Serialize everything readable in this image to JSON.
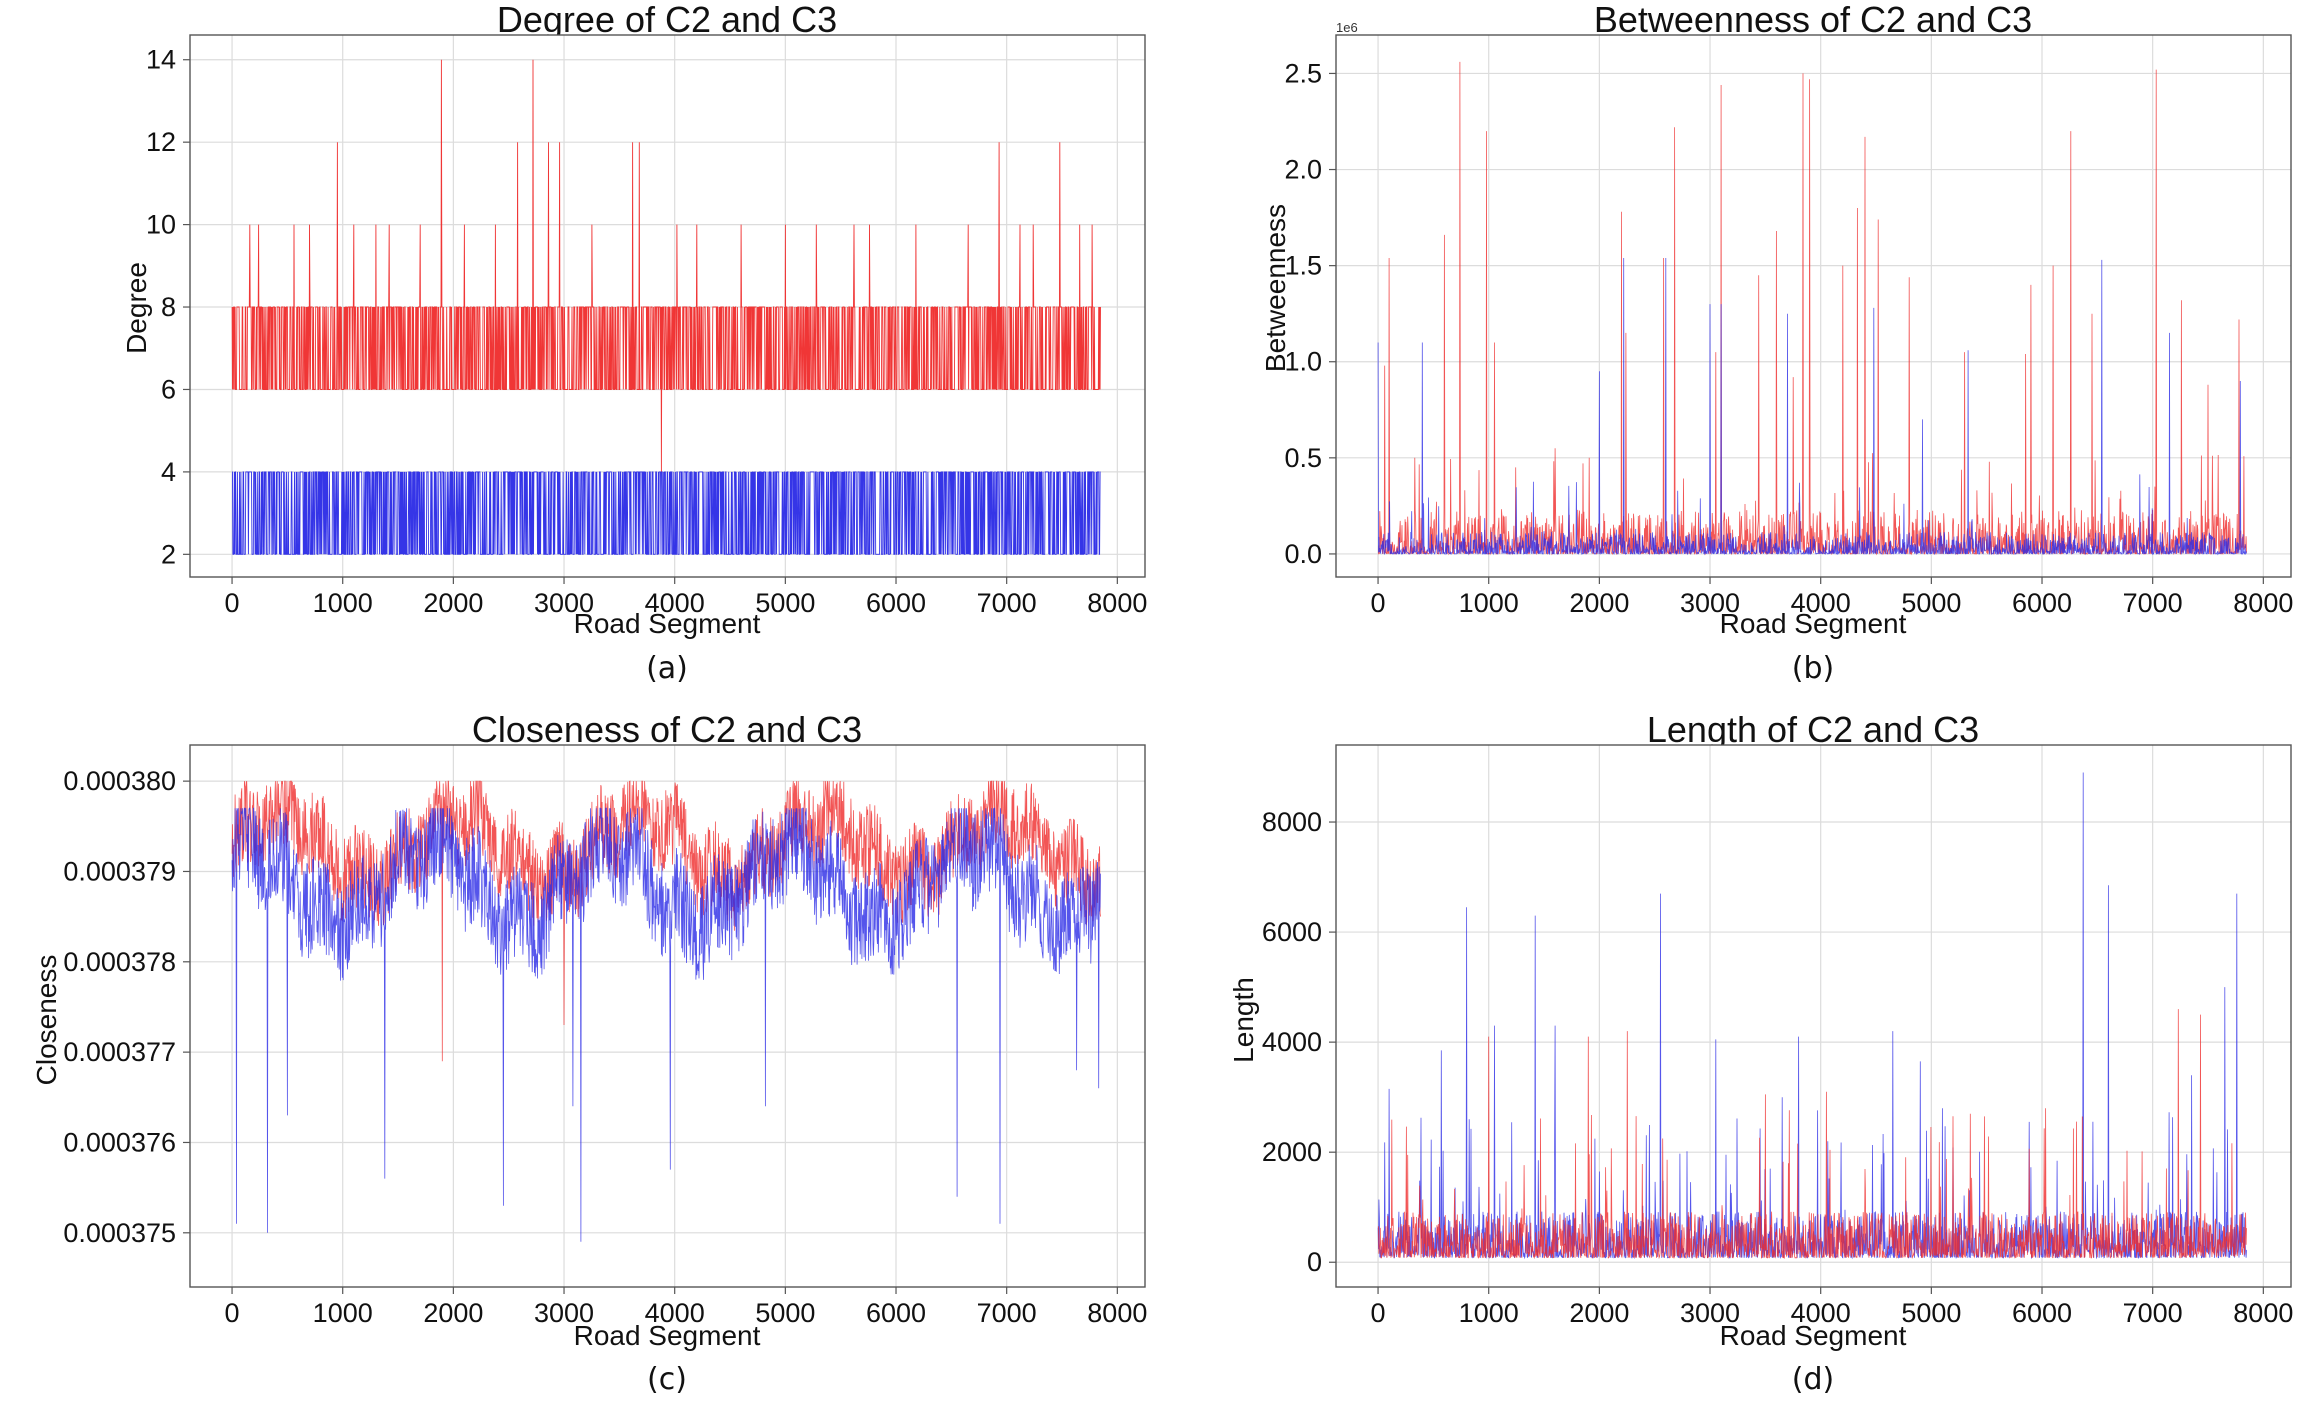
{
  "figure": {
    "captions": [
      "(a)",
      "(b)",
      "(c)",
      "(d)"
    ]
  },
  "chart_data": [
    {
      "id": "a",
      "type": "line",
      "title": "Degree of C2 and C3",
      "xlabel": "Road Segment",
      "ylabel": "Degree",
      "xlim": [
        -380,
        8250
      ],
      "ylim": [
        1.45,
        14.6
      ],
      "xticks": [
        0,
        1000,
        2000,
        3000,
        4000,
        5000,
        6000,
        7000,
        8000
      ],
      "yticks": [
        2,
        4,
        6,
        8,
        10,
        12,
        14
      ],
      "ytick_labels": [
        "2",
        "4",
        "6",
        "8",
        "10",
        "12",
        "14"
      ],
      "grid": true,
      "n_segments": 7850,
      "series": [
        {
          "color": "#ef2b2b",
          "baseline": 6,
          "typical_max": 8,
          "peaks": [
            [
              160,
              10
            ],
            [
              240,
              10
            ],
            [
              560,
              10
            ],
            [
              700,
              10
            ],
            [
              950,
              12
            ],
            [
              1100,
              10
            ],
            [
              1300,
              10
            ],
            [
              1420,
              10
            ],
            [
              1700,
              10
            ],
            [
              1890,
              14
            ],
            [
              2100,
              10
            ],
            [
              2380,
              10
            ],
            [
              2580,
              12
            ],
            [
              2720,
              14
            ],
            [
              2860,
              12
            ],
            [
              2960,
              12
            ],
            [
              3250,
              10
            ],
            [
              3620,
              12
            ],
            [
              3680,
              12
            ],
            [
              3880,
              4
            ],
            [
              4020,
              10
            ],
            [
              4200,
              10
            ],
            [
              4600,
              10
            ],
            [
              5000,
              10
            ],
            [
              5280,
              10
            ],
            [
              5620,
              10
            ],
            [
              5760,
              10
            ],
            [
              6180,
              10
            ],
            [
              6650,
              10
            ],
            [
              6930,
              12
            ],
            [
              7120,
              10
            ],
            [
              7240,
              10
            ],
            [
              7480,
              12
            ],
            [
              7660,
              10
            ],
            [
              7770,
              10
            ]
          ]
        },
        {
          "color": "#2a2ae6",
          "baseline": 2,
          "typical_max": 4,
          "peaks": []
        }
      ]
    },
    {
      "id": "b",
      "type": "line",
      "title": "Betweenness of C2 and C3",
      "xlabel": "Road Segment",
      "ylabel": "Betweenness",
      "xlim": [
        -380,
        8250
      ],
      "ylim": [
        -120000,
        2700000
      ],
      "xticks": [
        0,
        1000,
        2000,
        3000,
        4000,
        5000,
        6000,
        7000,
        8000
      ],
      "yticks": [
        0,
        500000,
        1000000,
        1500000,
        2000000,
        2500000
      ],
      "ytick_labels": [
        "0.0",
        "0.5",
        "1.0",
        "1.5",
        "2.0",
        "2.5"
      ],
      "offset_text": "1e6",
      "grid": true,
      "n_segments": 7850,
      "series": [
        {
          "color": "#ef2b2b",
          "baseline": 0,
          "peaks": [
            [
              60,
              980000
            ],
            [
              100,
              1540000
            ],
            [
              330,
              500000
            ],
            [
              600,
              1660000
            ],
            [
              740,
              2560000
            ],
            [
              980,
              2200000
            ],
            [
              1050,
              1100000
            ],
            [
              1600,
              550000
            ],
            [
              2200,
              1780000
            ],
            [
              2240,
              1150000
            ],
            [
              2580,
              1540000
            ],
            [
              2680,
              2220000
            ],
            [
              3050,
              1050000
            ],
            [
              3100,
              2440000
            ],
            [
              3440,
              1450000
            ],
            [
              3600,
              1680000
            ],
            [
              3750,
              920000
            ],
            [
              3840,
              2500000
            ],
            [
              3900,
              2470000
            ],
            [
              4200,
              1500000
            ],
            [
              4330,
              1800000
            ],
            [
              4400,
              2170000
            ],
            [
              4520,
              1740000
            ],
            [
              4800,
              1440000
            ],
            [
              5300,
              1050000
            ],
            [
              5850,
              1040000
            ],
            [
              5900,
              1400000
            ],
            [
              6100,
              1500000
            ],
            [
              6260,
              2200000
            ],
            [
              6450,
              1250000
            ],
            [
              7030,
              2520000
            ],
            [
              7260,
              1320000
            ],
            [
              7500,
              880000
            ],
            [
              7780,
              1220000
            ]
          ]
        },
        {
          "color": "#2a2ae6",
          "baseline": 0,
          "peaks": [
            [
              0,
              1100000
            ],
            [
              400,
              1100000
            ],
            [
              2000,
              950000
            ],
            [
              2220,
              1540000
            ],
            [
              2600,
              1540000
            ],
            [
              3000,
              1300000
            ],
            [
              3100,
              1300000
            ],
            [
              3700,
              1250000
            ],
            [
              4480,
              1280000
            ],
            [
              4920,
              700000
            ],
            [
              5330,
              1060000
            ],
            [
              6540,
              1530000
            ],
            [
              7150,
              1150000
            ],
            [
              7790,
              900000
            ]
          ]
        }
      ]
    },
    {
      "id": "c",
      "type": "line",
      "title": "Closeness of C2 and C3",
      "xlabel": "Road Segment",
      "ylabel": "Closeness",
      "xlim": [
        -380,
        8250
      ],
      "ylim": [
        0.0003744,
        0.0003804
      ],
      "xticks": [
        0,
        1000,
        2000,
        3000,
        4000,
        5000,
        6000,
        7000,
        8000
      ],
      "yticks": [
        0.000375,
        0.000376,
        0.000377,
        0.000378,
        0.000379,
        0.00038
      ],
      "ytick_labels": [
        "0.000375",
        "0.000376",
        "0.000377",
        "0.000378",
        "0.000379",
        "0.000380"
      ],
      "grid": true,
      "n_segments": 7850,
      "series": [
        {
          "color": "#ef2b2b",
          "band": [
            0.0003783,
            0.00038
          ],
          "dips": [
            [
              1900,
              0.0003769
            ],
            [
              3000,
              0.0003773
            ]
          ]
        },
        {
          "color": "#2a2ae6",
          "band": [
            0.0003777,
            0.0003797
          ],
          "dips": [
            [
              40,
              0.0003751
            ],
            [
              320,
              0.000375
            ],
            [
              500,
              0.0003763
            ],
            [
              1380,
              0.0003756
            ],
            [
              2450,
              0.0003753
            ],
            [
              3080,
              0.0003764
            ],
            [
              3150,
              0.0003749
            ],
            [
              3960,
              0.0003757
            ],
            [
              4820,
              0.0003764
            ],
            [
              6550,
              0.0003754
            ],
            [
              6940,
              0.0003751
            ],
            [
              7630,
              0.0003768
            ],
            [
              7830,
              0.0003766
            ]
          ]
        }
      ]
    },
    {
      "id": "d",
      "type": "line",
      "title": "Length of C2 and C3",
      "xlabel": "Road Segment",
      "ylabel": "Length",
      "xlim": [
        -380,
        8250
      ],
      "ylim": [
        -450,
        9400
      ],
      "xticks": [
        0,
        1000,
        2000,
        3000,
        4000,
        5000,
        6000,
        7000,
        8000
      ],
      "yticks": [
        0,
        2000,
        4000,
        6000,
        8000
      ],
      "ytick_labels": [
        "0",
        "2000",
        "4000",
        "6000",
        "8000"
      ],
      "grid": true,
      "n_segments": 7850,
      "series": [
        {
          "color": "#2a2ae6",
          "baseline": 0,
          "peaks": [
            [
              100,
              3150
            ],
            [
              570,
              3850
            ],
            [
              800,
              6450
            ],
            [
              1050,
              4300
            ],
            [
              1420,
              6300
            ],
            [
              1600,
              4300
            ],
            [
              2550,
              6700
            ],
            [
              3050,
              4050
            ],
            [
              3650,
              3000
            ],
            [
              3800,
              4100
            ],
            [
              4650,
              4200
            ],
            [
              4900,
              3650
            ],
            [
              5100,
              2800
            ],
            [
              6370,
              8900
            ],
            [
              6600,
              6850
            ],
            [
              7350,
              3400
            ],
            [
              7650,
              5000
            ],
            [
              7760,
              6700
            ]
          ]
        },
        {
          "color": "#ef2b2b",
          "baseline": 0,
          "peaks": [
            [
              1000,
              4100
            ],
            [
              1900,
              4100
            ],
            [
              2250,
              4200
            ],
            [
              3500,
              3050
            ],
            [
              4050,
              3100
            ],
            [
              5350,
              2700
            ],
            [
              6030,
              2800
            ],
            [
              7230,
              4600
            ],
            [
              7430,
              4500
            ]
          ]
        }
      ]
    }
  ]
}
